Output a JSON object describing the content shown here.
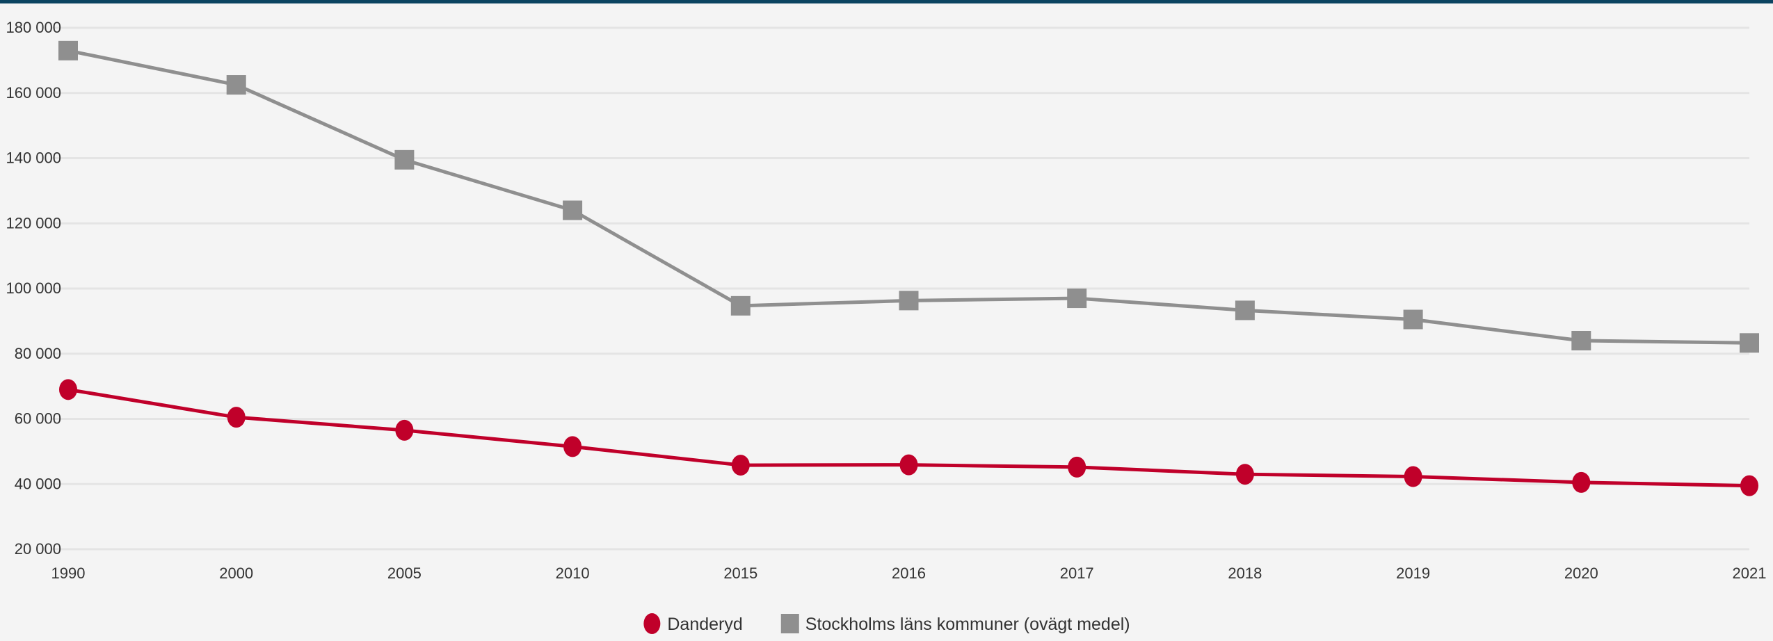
{
  "colors": {
    "top_bar": "#0c4461",
    "background": "#f4f4f4",
    "grid": "#e4e4e4",
    "tick_text": "#333333"
  },
  "chart_data": {
    "type": "line",
    "title": "",
    "xlabel": "",
    "ylabel": "",
    "categories": [
      "1990",
      "2000",
      "2005",
      "2010",
      "2015",
      "2016",
      "2017",
      "2018",
      "2019",
      "2020",
      "2021"
    ],
    "ylim": [
      20000,
      180000
    ],
    "y_ticks": [
      20000,
      40000,
      60000,
      80000,
      100000,
      120000,
      140000,
      160000,
      180000
    ],
    "y_tick_labels": [
      "20 000",
      "40 000",
      "60 000",
      "80 000",
      "100 000",
      "120 000",
      "140 000",
      "160 000",
      "180 000"
    ],
    "grid": true,
    "legend_position": "bottom-center",
    "series": [
      {
        "name": "Danderyd",
        "color": "#c0002a",
        "marker": "circle",
        "values": [
          69000,
          60500,
          56500,
          51500,
          45800,
          45900,
          45200,
          43000,
          42300,
          40500,
          39500
        ]
      },
      {
        "name": "Stockholms läns kommuner (ovägt medel)",
        "color": "#8f8f8f",
        "marker": "square",
        "values": [
          173000,
          162500,
          139500,
          124000,
          94700,
          96300,
          97000,
          93300,
          90500,
          84000,
          83300
        ]
      }
    ]
  }
}
